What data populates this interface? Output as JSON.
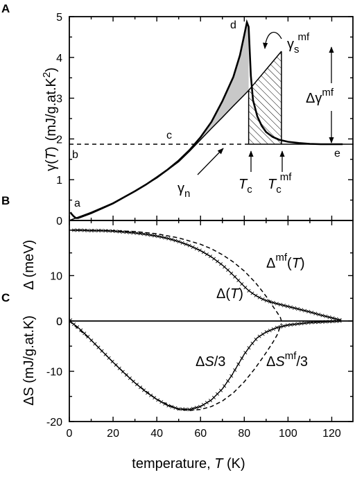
{
  "chart_data": [
    {
      "panel": "A",
      "type": "line",
      "ylabel": "γ(T)  (mJ/g.at.K²)",
      "ylabel_parts": {
        "sym": "γ",
        "open": "(",
        "var": "T",
        "close": ")",
        "units": "(mJ/g.at.K",
        "exp": "2",
        "units_close": ")"
      },
      "ylim": [
        0,
        5
      ],
      "yticks": [
        "0",
        "1",
        "2",
        "3",
        "4",
        "5"
      ],
      "series": [
        {
          "role": "measured",
          "values": [
            [
              0.5,
              0.2
            ],
            [
              1,
              0.16
            ],
            [
              2,
              0.1
            ],
            [
              3,
              0.06
            ],
            [
              4,
              0.06
            ],
            [
              5,
              0.08
            ],
            [
              7,
              0.12
            ],
            [
              10,
              0.18
            ],
            [
              15,
              0.3
            ],
            [
              20,
              0.42
            ],
            [
              25,
              0.57
            ],
            [
              30,
              0.72
            ],
            [
              35,
              0.88
            ],
            [
              40,
              1.06
            ],
            [
              45,
              1.25
            ],
            [
              50,
              1.47
            ],
            [
              55,
              1.73
            ],
            [
              60,
              2.04
            ],
            [
              65,
              2.42
            ],
            [
              70,
              2.93
            ],
            [
              75,
              3.52
            ],
            [
              78,
              4.05
            ],
            [
              80,
              4.55
            ],
            [
              81.2,
              4.86
            ],
            [
              82,
              4.75
            ],
            [
              83,
              3.55
            ],
            [
              84,
              2.95
            ],
            [
              86,
              2.55
            ],
            [
              88,
              2.32
            ],
            [
              90,
              2.17
            ],
            [
              93,
              2.05
            ],
            [
              96,
              1.98
            ],
            [
              100,
              1.93
            ],
            [
              105,
              1.9
            ],
            [
              110,
              1.88
            ],
            [
              115,
              1.87
            ],
            [
              120,
              1.87
            ],
            [
              125,
              1.87
            ]
          ]
        },
        {
          "role": "gamma_n",
          "values": [
            [
              0,
              0
            ],
            [
              10,
              0.2
            ],
            [
              20,
              0.43
            ],
            [
              30,
              0.72
            ],
            [
              40,
              1.04
            ],
            [
              50,
              1.44
            ],
            [
              55,
              1.7
            ],
            [
              60,
              1.98
            ],
            [
              65,
              2.26
            ],
            [
              70,
              2.53
            ],
            [
              75,
              2.81
            ],
            [
              80,
              3.08
            ],
            [
              82,
              3.19
            ]
          ]
        },
        {
          "role": "gamma_s_mf",
          "values": [
            [
              82,
              3.19
            ],
            [
              97,
              4.15
            ]
          ]
        },
        {
          "role": "baseline_dashed",
          "values": [
            [
              0,
              1.87
            ],
            [
              82,
              1.87
            ]
          ]
        },
        {
          "role": "baseline_solid",
          "values": [
            [
              82,
              1.87
            ],
            [
              130,
              1.87
            ]
          ]
        }
      ],
      "gap_region": {
        "description": "shaded area between measured and gamma_n",
        "tc": 82
      },
      "mf_region": {
        "description": "hatched area",
        "tc_mf": 97
      },
      "point_labels": [
        "a",
        "b",
        "c",
        "d",
        "e"
      ],
      "annotations": {
        "gamma_n": {
          "sym": "γ",
          "sub": "n"
        },
        "gamma_s_mf": {
          "sym": "γ",
          "sub": "s",
          "sup": "mf"
        },
        "delta_gamma_mf": {
          "sym": "Δγ",
          "sup": "mf"
        },
        "tc": {
          "sym": "T",
          "sub": "c"
        },
        "tc_mf": {
          "sym": "T",
          "sub": "c",
          "sup": "mf"
        }
      }
    },
    {
      "panel": "B",
      "type": "scatter",
      "ylabel": "Δ  (meV)",
      "ylim": [
        0,
        22
      ],
      "yticks": [
        "0",
        "10"
      ],
      "series": [
        {
          "role": "measured",
          "values": [
            [
              1,
              20
            ],
            [
              5,
              20
            ],
            [
              10,
              19.9
            ],
            [
              15,
              19.9
            ],
            [
              20,
              19.8
            ],
            [
              25,
              19.6
            ],
            [
              30,
              19.4
            ],
            [
              35,
              19.1
            ],
            [
              40,
              18.7
            ],
            [
              45,
              18.2
            ],
            [
              50,
              17.5
            ],
            [
              55,
              16.6
            ],
            [
              60,
              15.5
            ],
            [
              65,
              14.1
            ],
            [
              70,
              12.3
            ],
            [
              73,
              11.0
            ],
            [
              76,
              9.6
            ],
            [
              78,
              8.6
            ],
            [
              80,
              7.6
            ],
            [
              82,
              6.7
            ],
            [
              84,
              6.0
            ],
            [
              86,
              5.4
            ],
            [
              88,
              4.9
            ],
            [
              90,
              4.5
            ],
            [
              95,
              3.8
            ],
            [
              100,
              3.2
            ],
            [
              105,
              2.6
            ],
            [
              110,
              2.0
            ],
            [
              115,
              1.3
            ],
            [
              120,
              0.7
            ],
            [
              124,
              0.2
            ]
          ]
        },
        {
          "role": "mean_field",
          "values": [
            [
              0,
              20
            ],
            [
              10,
              20
            ],
            [
              20,
              19.9
            ],
            [
              30,
              19.7
            ],
            [
              40,
              19.2
            ],
            [
              50,
              18.3
            ],
            [
              60,
              16.9
            ],
            [
              65,
              15.9
            ],
            [
              70,
              14.6
            ],
            [
              75,
              13.0
            ],
            [
              80,
              11.0
            ],
            [
              85,
              8.5
            ],
            [
              88,
              6.7
            ],
            [
              91,
              4.8
            ],
            [
              93,
              3.3
            ],
            [
              95,
              1.9
            ],
            [
              96.5,
              0.8
            ],
            [
              97,
              0
            ]
          ]
        }
      ],
      "annotations": {
        "delta": {
          "sym": "Δ(",
          "var": "T",
          "close": ")"
        },
        "delta_mf": {
          "sym": "Δ",
          "sup": "mf",
          "open": "(",
          "var": "T",
          "close": ")"
        }
      }
    },
    {
      "panel": "C",
      "type": "scatter",
      "ylabel": "ΔS  (mJ/g.at.K)",
      "ylim": [
        -20,
        0
      ],
      "yticks": [
        "0",
        "-10",
        "-20"
      ],
      "xlabel": "temperature,  T (K)",
      "xlabel_parts": {
        "prefix": "temperature,  ",
        "var": "T",
        "suffix": " (K)"
      },
      "xlim": [
        0,
        130
      ],
      "xticks": [
        "0",
        "20",
        "40",
        "60",
        "80",
        "100",
        "120"
      ],
      "series": [
        {
          "role": "measured_div3",
          "values": [
            [
              0,
              0
            ],
            [
              2,
              -0.6
            ],
            [
              4,
              -1.3
            ],
            [
              6,
              -2.1
            ],
            [
              8,
              -2.9
            ],
            [
              10,
              -3.8
            ],
            [
              15,
              -6.0
            ],
            [
              20,
              -8.2
            ],
            [
              25,
              -10.3
            ],
            [
              30,
              -12.3
            ],
            [
              35,
              -14.1
            ],
            [
              40,
              -15.6
            ],
            [
              45,
              -16.8
            ],
            [
              50,
              -17.5
            ],
            [
              55,
              -17.6
            ],
            [
              60,
              -17.0
            ],
            [
              65,
              -15.7
            ],
            [
              70,
              -13.5
            ],
            [
              74,
              -11.0
            ],
            [
              77,
              -8.8
            ],
            [
              80,
              -6.6
            ],
            [
              83,
              -4.8
            ],
            [
              86,
              -3.3
            ],
            [
              90,
              -2.2
            ],
            [
              95,
              -1.3
            ],
            [
              100,
              -0.8
            ],
            [
              110,
              -0.3
            ],
            [
              120,
              -0.1
            ],
            [
              124,
              0
            ]
          ]
        },
        {
          "role": "mean_field_div3",
          "values": [
            [
              0,
              0
            ],
            [
              10,
              -3.8
            ],
            [
              20,
              -8.2
            ],
            [
              30,
              -12.3
            ],
            [
              40,
              -15.6
            ],
            [
              50,
              -17.6
            ],
            [
              55,
              -17.8
            ],
            [
              60,
              -17.6
            ],
            [
              65,
              -17.0
            ],
            [
              70,
              -15.9
            ],
            [
              75,
              -14.3
            ],
            [
              80,
              -12.1
            ],
            [
              85,
              -9.4
            ],
            [
              90,
              -6.3
            ],
            [
              93,
              -4.3
            ],
            [
              95,
              -2.8
            ],
            [
              97,
              -0.5
            ]
          ]
        }
      ],
      "annotations": {
        "ds": {
          "sym": "Δ",
          "var": "S",
          "tail": "/3"
        },
        "ds_mf": {
          "sym": "Δ",
          "var": "S",
          "sup": "mf",
          "tail": "/3"
        }
      }
    }
  ]
}
